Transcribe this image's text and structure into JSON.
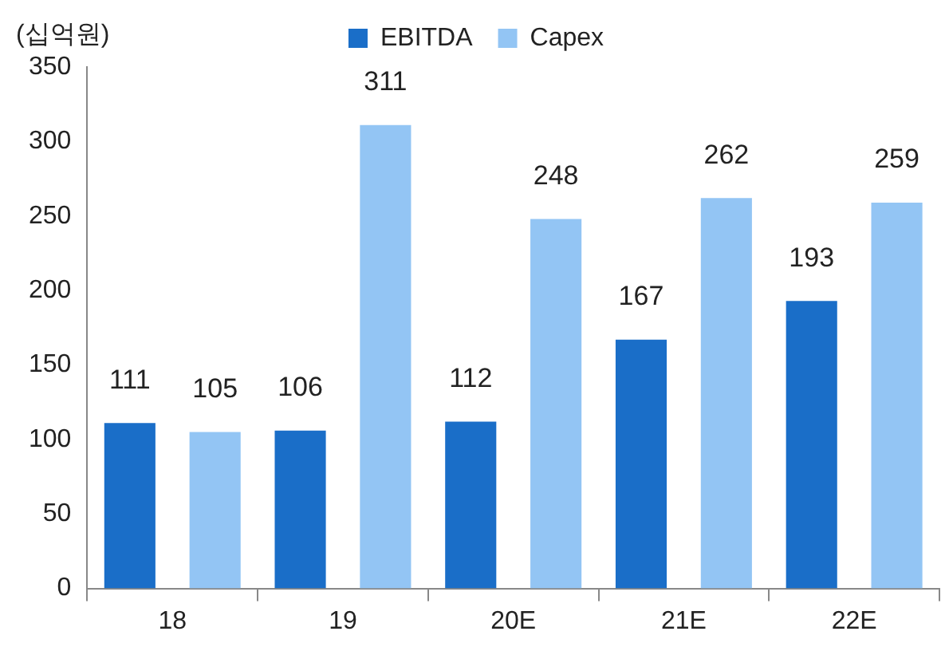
{
  "chart_data": {
    "type": "bar",
    "ylabel": "(십억원)",
    "categories": [
      "18",
      "19",
      "20E",
      "21E",
      "22E"
    ],
    "series": [
      {
        "name": "EBITDA",
        "color": "#1a6ec8",
        "values": [
          111,
          106,
          112,
          167,
          193
        ]
      },
      {
        "name": "Capex",
        "color": "#93c5f4",
        "values": [
          105,
          311,
          248,
          262,
          259
        ]
      }
    ],
    "ylim": [
      0,
      350
    ],
    "yticks": [
      0,
      50,
      100,
      150,
      200,
      250,
      300,
      350
    ],
    "grid": false,
    "legend": "top",
    "data_labels": true
  }
}
